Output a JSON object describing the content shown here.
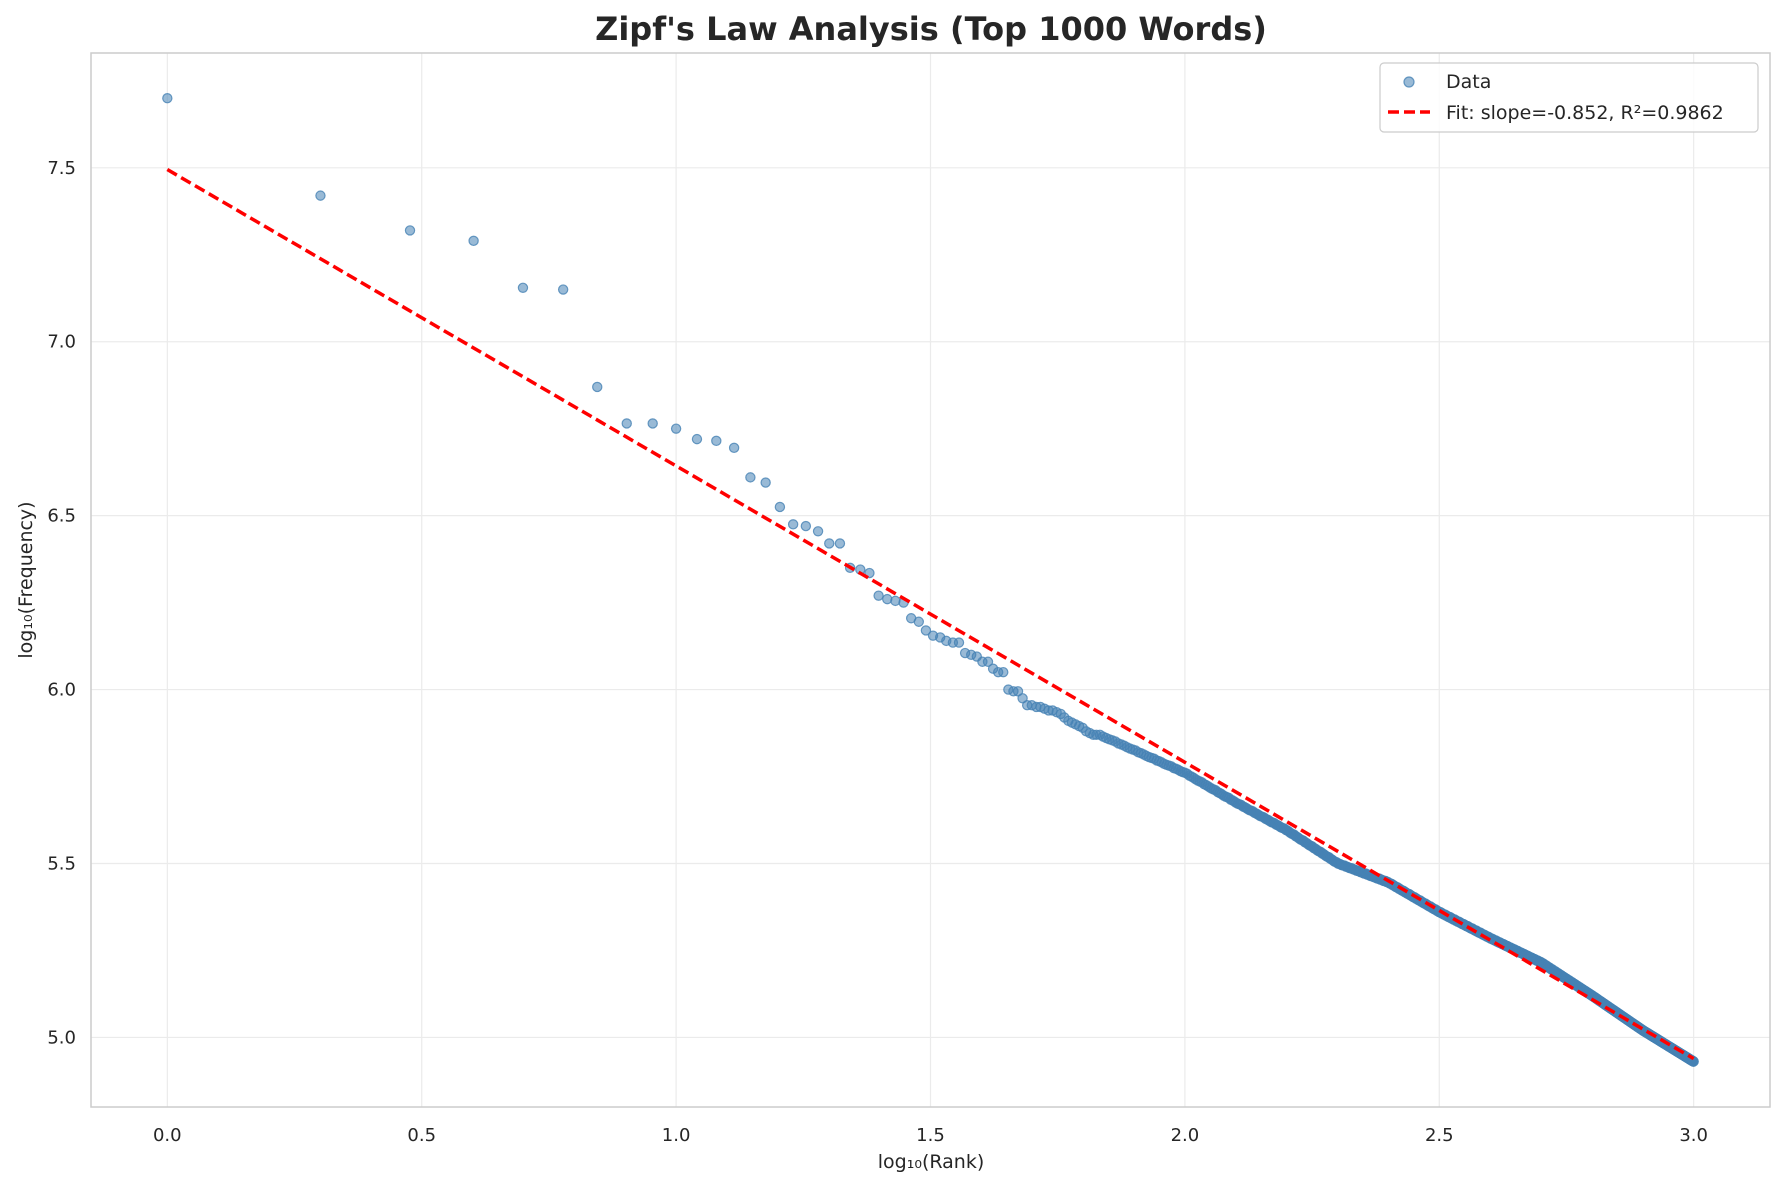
{
  "chart_data": {
    "type": "scatter",
    "title": "Zipf's Law Analysis (Top 1000 Words)",
    "xlabel": "log₁₀(Rank)",
    "ylabel": "log₁₀(Frequency)",
    "xlim": [
      -0.15,
      3.15
    ],
    "ylim": [
      4.8,
      7.83
    ],
    "xticks": [
      0.0,
      0.5,
      1.0,
      1.5,
      2.0,
      2.5,
      3.0
    ],
    "xtick_labels": [
      "0.0",
      "0.5",
      "1.0",
      "1.5",
      "2.0",
      "2.5",
      "3.0"
    ],
    "yticks": [
      5.0,
      5.5,
      6.0,
      6.5,
      7.0,
      7.5
    ],
    "ytick_labels": [
      "5.0",
      "5.5",
      "6.0",
      "6.5",
      "7.0",
      "7.5"
    ],
    "grid": true,
    "legend_position": "top-right",
    "series": [
      {
        "name": "Data",
        "kind": "scatter",
        "color": "#4682b4",
        "points": [
          [
            0.0,
            7.7
          ],
          [
            0.301,
            7.42
          ],
          [
            0.477,
            7.32
          ],
          [
            0.602,
            7.29
          ],
          [
            0.699,
            7.155
          ],
          [
            0.778,
            7.15
          ],
          [
            0.845,
            6.87
          ],
          [
            0.903,
            6.765
          ],
          [
            0.954,
            6.765
          ],
          [
            1.0,
            6.75
          ],
          [
            1.041,
            6.72
          ],
          [
            1.079,
            6.715
          ],
          [
            1.114,
            6.695
          ],
          [
            1.146,
            6.61
          ],
          [
            1.176,
            6.595
          ],
          [
            1.204,
            6.525
          ],
          [
            1.23,
            6.475
          ],
          [
            1.255,
            6.47
          ],
          [
            1.279,
            6.455
          ],
          [
            1.301,
            6.42
          ],
          [
            1.322,
            6.42
          ],
          [
            1.342,
            6.35
          ],
          [
            1.362,
            6.345
          ],
          [
            1.38,
            6.335
          ],
          [
            1.398,
            6.27
          ],
          [
            1.415,
            6.26
          ],
          [
            1.431,
            6.255
          ],
          [
            1.447,
            6.25
          ],
          [
            1.462,
            6.205
          ],
          [
            1.477,
            6.195
          ],
          [
            1.491,
            6.17
          ],
          [
            1.505,
            6.155
          ],
          [
            1.519,
            6.15
          ],
          [
            1.531,
            6.14
          ],
          [
            1.544,
            6.135
          ],
          [
            1.556,
            6.135
          ],
          [
            1.568,
            6.105
          ],
          [
            1.58,
            6.1
          ],
          [
            1.591,
            6.095
          ],
          [
            1.602,
            6.08
          ],
          [
            1.613,
            6.08
          ],
          [
            1.623,
            6.06
          ],
          [
            1.633,
            6.05
          ],
          [
            1.643,
            6.05
          ],
          [
            1.653,
            6.0
          ],
          [
            1.663,
            5.995
          ],
          [
            1.672,
            5.995
          ],
          [
            1.681,
            5.975
          ],
          [
            1.69,
            5.955
          ],
          [
            1.699,
            5.955
          ],
          [
            1.708,
            5.95
          ],
          [
            1.716,
            5.95
          ],
          [
            1.724,
            5.945
          ],
          [
            1.732,
            5.94
          ],
          [
            1.74,
            5.94
          ],
          [
            1.748,
            5.935
          ],
          [
            1.756,
            5.93
          ],
          [
            1.763,
            5.92
          ],
          [
            1.771,
            5.91
          ],
          [
            1.778,
            5.905
          ],
          [
            1.785,
            5.9
          ],
          [
            1.792,
            5.895
          ],
          [
            1.799,
            5.89
          ],
          [
            1.806,
            5.88
          ],
          [
            1.813,
            5.875
          ],
          [
            1.82,
            5.87
          ],
          [
            1.826,
            5.87
          ],
          [
            1.833,
            5.87
          ],
          [
            1.839,
            5.865
          ]
        ]
      },
      {
        "name": "Fit: slope=-0.852, R²=0.9862",
        "kind": "line",
        "color": "#ff0000",
        "intercept": 7.495,
        "slope": -0.852,
        "x_range": [
          0.0,
          3.0
        ]
      }
    ]
  }
}
